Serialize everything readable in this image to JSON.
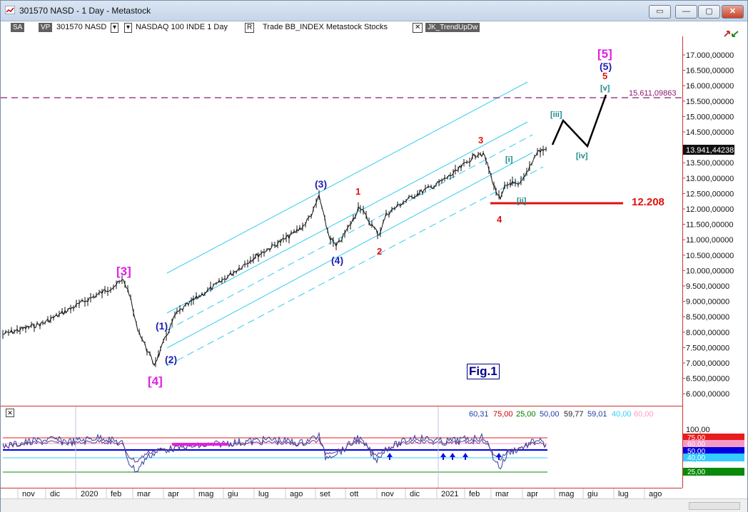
{
  "window": {
    "title": "301570 NASD - 1 Day - Metastock",
    "buttons": [
      "▭",
      "—",
      "▢",
      "✕"
    ]
  },
  "toolbar": {
    "sa": "SA",
    "vp": "VP",
    "symbol": "301570 NASD",
    "menu1": "▾",
    "security": "NASDAQ 100 INDE  1 Day",
    "menu2": "▾",
    "r_label": "R",
    "trade": "Trade  BB_INDEX  Metastock  Stocks",
    "close_x": "✕",
    "expert": "JK_TrendUpDw"
  },
  "price_axis": {
    "labels": [
      "17.000,00000",
      "16.500,00000",
      "16.000,00000",
      "15.500,00000",
      "15.000,00000",
      "14.500,00000",
      "14.000,00000",
      "13.500,00000",
      "13.000,00000",
      "12.500,00000",
      "12.000,00000",
      "11.500,00000",
      "11.000,00000",
      "10.500,00000",
      "10.000,00000",
      "9.500,00000",
      "9.000,00000",
      "8.500,00000",
      "8.000,00000",
      "7.500,00000",
      "7.000,00000",
      "6.500,00000",
      "6.000,00000"
    ],
    "last_price": "13.941,44238",
    "target_line_label": "15.611,09863"
  },
  "annotations": {
    "wave3_major": "[3]",
    "wave4_major": "[4]",
    "wave5_major": "[5]",
    "w1": "(1)",
    "w2": "(2)",
    "w3": "(3)",
    "w4": "(4)",
    "w5": "(5)",
    "r1": "1",
    "r2": "2",
    "r3": "3",
    "r4": "4",
    "r5": "5",
    "i": "[i]",
    "ii": "[ii]",
    "iii": "[iii]",
    "iv": "[iv]",
    "v": "[v]",
    "support_value": "12.208",
    "fig": "Fig.1"
  },
  "indicator": {
    "values": [
      {
        "text": "60,31",
        "color": "#1f3fa8"
      },
      {
        "text": "75,00",
        "color": "#cc0000"
      },
      {
        "text": "25,00",
        "color": "#007a00"
      },
      {
        "text": "50,00",
        "color": "#1f3fa8"
      },
      {
        "text": "59,77",
        "color": "#222222"
      },
      {
        "text": "59,01",
        "color": "#1f3fa8"
      },
      {
        "text": "40,00",
        "color": "#33ccff"
      },
      {
        "text": "60,00",
        "color": "#ff99cc"
      }
    ],
    "axis_labels": [
      "100,00",
      "75,00",
      "60,00",
      "50,00",
      "40,00",
      "25,00"
    ],
    "tags": [
      {
        "text": "75,00",
        "color": "#e81c1c"
      },
      {
        "text": "60,00",
        "color": "#f59ac8"
      },
      {
        "text": "50,00",
        "color": "#0000e0"
      },
      {
        "text": "40,00",
        "color": "#33ccff"
      },
      {
        "text": "25,00",
        "color": "#0a8a0a"
      }
    ]
  },
  "x_axis": {
    "labels": [
      "nov",
      "dic",
      "2020",
      "feb",
      "mar",
      "apr",
      "mag",
      "giu",
      "lug",
      "ago",
      "set",
      "ott",
      "nov",
      "dic",
      "2021",
      "feb",
      "mar",
      "apr",
      "mag",
      "giu",
      "lug",
      "ago"
    ]
  },
  "colors": {
    "price_bars": "#111111",
    "channel": "#33ccee",
    "magenta": "#e020e0",
    "blue": "#1f1fb0",
    "red": "#e01010",
    "teal": "#1a8a8a",
    "target_line": "#8b1a6b"
  }
}
